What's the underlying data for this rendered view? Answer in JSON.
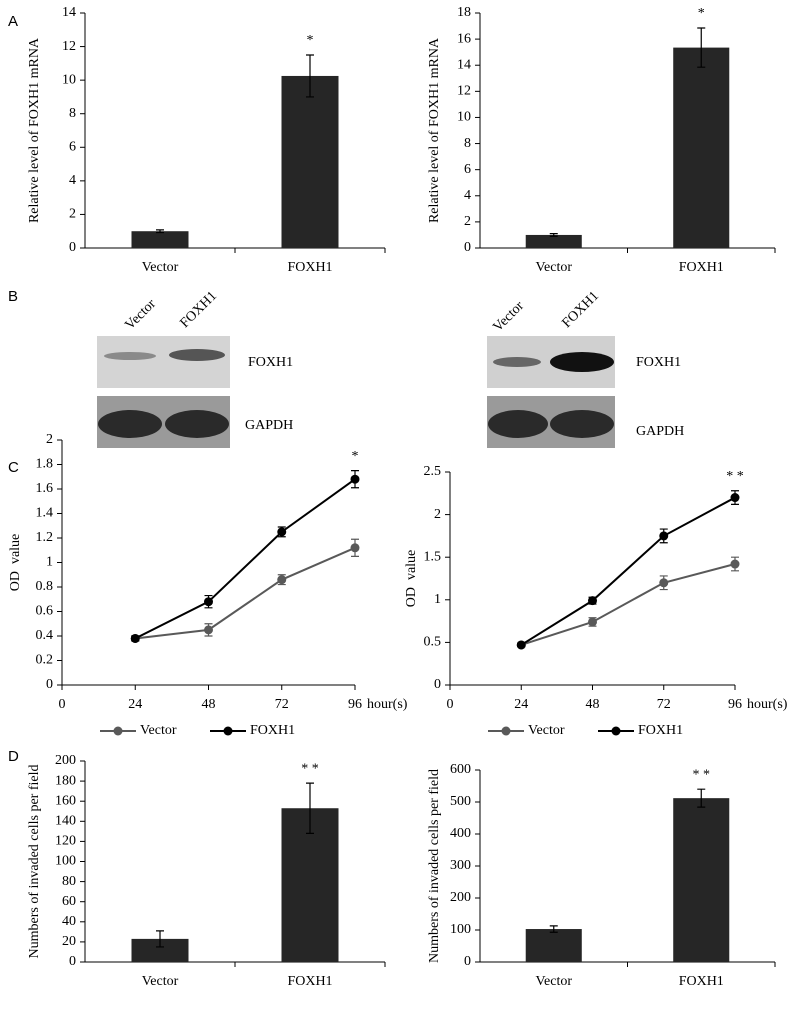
{
  "panels": [
    "A",
    "B",
    "C",
    "D"
  ],
  "blots": [
    {
      "lanes": [
        "Vector",
        "FOXH1"
      ],
      "bands": [
        "FOXH1",
        "GAPDH"
      ]
    },
    {
      "lanes": [
        "Vector",
        "FOXH1"
      ],
      "bands": [
        "FOXH1",
        "GAPDH"
      ]
    }
  ],
  "chart_data": [
    {
      "type": "bar",
      "ylabel": "Relative level of FOXH1 mRNA",
      "categories": [
        "Vector",
        "FOXH1"
      ],
      "values": [
        1.0,
        10.25
      ],
      "errors": [
        0.08,
        1.25
      ],
      "color": "#262626",
      "ylim": [
        0,
        14
      ],
      "yticks": [
        0,
        2,
        4,
        6,
        8,
        10,
        12,
        14
      ],
      "annotation": "*"
    },
    {
      "type": "bar",
      "ylabel": "Relative level of FOXH1 mRNA",
      "categories": [
        "Vector",
        "FOXH1"
      ],
      "values": [
        1.0,
        15.35
      ],
      "errors": [
        0.1,
        1.5
      ],
      "color": "#262626",
      "ylim": [
        0,
        18
      ],
      "yticks": [
        0,
        2,
        4,
        6,
        8,
        10,
        12,
        14,
        16,
        18
      ],
      "annotation": "*"
    },
    {
      "type": "line",
      "ylabel": "OD  value",
      "xlabel": "hour(s)",
      "x": [
        24,
        48,
        72,
        96
      ],
      "xlim": [
        0,
        96
      ],
      "xticks": [
        0,
        24,
        48,
        72,
        96
      ],
      "ylim": [
        0,
        2
      ],
      "yticks": [
        0,
        0.2,
        0.4,
        0.6,
        0.8,
        1,
        1.2,
        1.4,
        1.6,
        1.8,
        2
      ],
      "series": [
        {
          "name": "Vector",
          "color": "#595959",
          "values": [
            0.38,
            0.45,
            0.86,
            1.12
          ],
          "errors": [
            0.02,
            0.05,
            0.04,
            0.07
          ]
        },
        {
          "name": "FOXH1",
          "color": "#000000",
          "values": [
            0.38,
            0.68,
            1.25,
            1.68
          ],
          "errors": [
            0.02,
            0.05,
            0.04,
            0.07
          ]
        }
      ],
      "annotation": "*"
    },
    {
      "type": "line",
      "ylabel": "OD  value",
      "xlabel": "hour(s)",
      "x": [
        24,
        48,
        72,
        96
      ],
      "xlim": [
        0,
        96
      ],
      "xticks": [
        0,
        24,
        48,
        72,
        96
      ],
      "ylim": [
        0,
        2.5
      ],
      "yticks": [
        0,
        0.5,
        1,
        1.5,
        2,
        2.5
      ],
      "series": [
        {
          "name": "Vector",
          "color": "#595959",
          "values": [
            0.47,
            0.74,
            1.2,
            1.42
          ],
          "errors": [
            0.02,
            0.05,
            0.08,
            0.08
          ]
        },
        {
          "name": "FOXH1",
          "color": "#000000",
          "values": [
            0.47,
            0.99,
            1.75,
            2.2
          ],
          "errors": [
            0.02,
            0.04,
            0.08,
            0.08
          ]
        }
      ],
      "annotation": "* *"
    },
    {
      "type": "bar",
      "ylabel": "Numbers of invaded cells per field",
      "categories": [
        "Vector",
        "FOXH1"
      ],
      "values": [
        23,
        153
      ],
      "errors": [
        8,
        25
      ],
      "color": "#262626",
      "ylim": [
        0,
        200
      ],
      "yticks": [
        0,
        20,
        40,
        60,
        80,
        100,
        120,
        140,
        160,
        180,
        200
      ],
      "annotation": "* *"
    },
    {
      "type": "bar",
      "ylabel": "Numbers of invaded cells per field",
      "categories": [
        "Vector",
        "FOXH1"
      ],
      "values": [
        103,
        512
      ],
      "errors": [
        10,
        28
      ],
      "color": "#262626",
      "ylim": [
        0,
        600
      ],
      "yticks": [
        0,
        100,
        200,
        300,
        400,
        500,
        600
      ],
      "annotation": "* *"
    }
  ]
}
